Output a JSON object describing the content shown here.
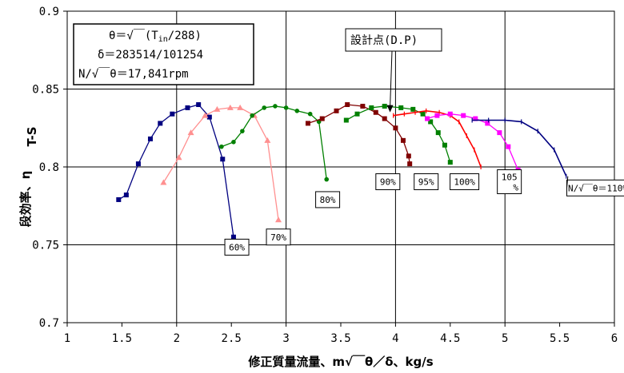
{
  "chart_data": {
    "type": "line",
    "xlabel": "修正質量流量、m√￣θ／δ、kg/s",
    "ylabel": "段効率、η",
    "ylabel_sub": "T-S",
    "xlim": [
      1,
      6
    ],
    "ylim": [
      0.7,
      0.9
    ],
    "x_ticks": [
      "1",
      "1.5",
      "2",
      "2.5",
      "3",
      "3.5",
      "4",
      "4.5",
      "5",
      "5.5",
      "6"
    ],
    "y_ticks": [
      "0.7",
      "0.75",
      "0.8",
      "0.85",
      "0.9"
    ],
    "grid": true,
    "info_box": {
      "line1": "θ＝√￣(T",
      "line1_sub": "in",
      "line1_end": "/288)",
      "line2": "δ＝283514/101254",
      "line3": "N/√￣θ＝17,841rpm"
    },
    "design_point": {
      "label": "設計点(D.P)",
      "x": 3.95,
      "y": 0.833
    },
    "series": [
      {
        "name": "60%",
        "color": "#000080",
        "marker": "square",
        "points": [
          [
            1.47,
            0.779
          ],
          [
            1.54,
            0.782
          ],
          [
            1.65,
            0.802
          ],
          [
            1.76,
            0.818
          ],
          [
            1.85,
            0.828
          ],
          [
            1.96,
            0.834
          ],
          [
            2.1,
            0.838
          ],
          [
            2.2,
            0.84
          ],
          [
            2.3,
            0.832
          ],
          [
            2.42,
            0.805
          ],
          [
            2.52,
            0.755
          ]
        ],
        "label_x": 2.55,
        "label_y": 0.7485
      },
      {
        "name": "70%",
        "color": "#ff9090",
        "marker": "triangle",
        "points": [
          [
            1.88,
            0.79
          ],
          [
            2.02,
            0.806
          ],
          [
            2.13,
            0.822
          ],
          [
            2.26,
            0.833
          ],
          [
            2.37,
            0.837
          ],
          [
            2.49,
            0.838
          ],
          [
            2.58,
            0.838
          ],
          [
            2.71,
            0.833
          ],
          [
            2.83,
            0.817
          ],
          [
            2.93,
            0.766
          ]
        ],
        "label_x": 2.93,
        "label_y": 0.755
      },
      {
        "name": "80%",
        "color": "#008000",
        "marker": "circle",
        "points": [
          [
            2.41,
            0.813
          ],
          [
            2.52,
            0.816
          ],
          [
            2.6,
            0.823
          ],
          [
            2.69,
            0.833
          ],
          [
            2.8,
            0.838
          ],
          [
            2.9,
            0.839
          ],
          [
            3.0,
            0.838
          ],
          [
            3.1,
            0.836
          ],
          [
            3.22,
            0.834
          ],
          [
            3.3,
            0.829
          ],
          [
            3.37,
            0.792
          ]
        ],
        "label_x": 3.38,
        "label_y": 0.779
      },
      {
        "name": "90%",
        "color": "#800000",
        "marker": "square",
        "points": [
          [
            3.2,
            0.828
          ],
          [
            3.33,
            0.831
          ],
          [
            3.46,
            0.836
          ],
          [
            3.56,
            0.84
          ],
          [
            3.7,
            0.839
          ],
          [
            3.82,
            0.835
          ],
          [
            3.9,
            0.831
          ],
          [
            4.0,
            0.825
          ],
          [
            4.07,
            0.817
          ],
          [
            4.12,
            0.807
          ],
          [
            4.13,
            0.802
          ]
        ],
        "label_x": 3.93,
        "label_y": 0.7905
      },
      {
        "name": "95%",
        "color": "#008000",
        "marker": "square",
        "points": [
          [
            3.55,
            0.83
          ],
          [
            3.65,
            0.834
          ],
          [
            3.78,
            0.838
          ],
          [
            3.9,
            0.839
          ],
          [
            4.05,
            0.838
          ],
          [
            4.16,
            0.837
          ],
          [
            4.25,
            0.834
          ],
          [
            4.32,
            0.829
          ],
          [
            4.39,
            0.822
          ],
          [
            4.45,
            0.814
          ],
          [
            4.5,
            0.803
          ]
        ],
        "label_x": 4.28,
        "label_y": 0.7905
      },
      {
        "name": "100%",
        "color": "#ff0000",
        "marker": "dash",
        "points": [
          [
            3.98,
            0.833
          ],
          [
            4.08,
            0.834
          ],
          [
            4.18,
            0.835
          ],
          [
            4.28,
            0.836
          ],
          [
            4.4,
            0.835
          ],
          [
            4.5,
            0.833
          ],
          [
            4.58,
            0.829
          ],
          [
            4.65,
            0.82
          ],
          [
            4.72,
            0.811
          ],
          [
            4.78,
            0.8
          ]
        ],
        "label_x": 4.63,
        "label_y": 0.7905
      },
      {
        "name": "105",
        "name_line2": "%",
        "color": "#ff00ff",
        "marker": "square",
        "points": [
          [
            4.29,
            0.831
          ],
          [
            4.38,
            0.833
          ],
          [
            4.5,
            0.834
          ],
          [
            4.62,
            0.833
          ],
          [
            4.73,
            0.831
          ],
          [
            4.84,
            0.828
          ],
          [
            4.95,
            0.822
          ],
          [
            5.03,
            0.813
          ],
          [
            5.12,
            0.798
          ]
        ],
        "label_x": 5.04,
        "label_y": 0.7905
      },
      {
        "name": "N/√￣θ＝110%",
        "color": "#000080",
        "marker": "dash",
        "points": [
          [
            4.7,
            0.83
          ],
          [
            4.85,
            0.83
          ],
          [
            5.0,
            0.83
          ],
          [
            5.15,
            0.829
          ],
          [
            5.3,
            0.823
          ],
          [
            5.45,
            0.811
          ],
          [
            5.56,
            0.794
          ]
        ],
        "label_x": 5.85,
        "label_y": 0.7865
      }
    ]
  }
}
